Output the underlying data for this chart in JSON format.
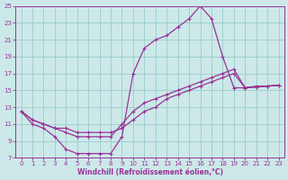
{
  "xlabel": "Windchill (Refroidissement éolien,°C)",
  "background_color": "#cce8e8",
  "grid_color": "#99cccc",
  "line_color": "#993399",
  "xlim": [
    -0.5,
    23.5
  ],
  "ylim": [
    7,
    25
  ],
  "xticks": [
    0,
    1,
    2,
    3,
    4,
    5,
    6,
    7,
    8,
    9,
    10,
    11,
    12,
    13,
    14,
    15,
    16,
    17,
    18,
    19,
    20,
    21,
    22,
    23
  ],
  "yticks": [
    7,
    9,
    11,
    13,
    15,
    17,
    19,
    21,
    23,
    25
  ],
  "line1_x": [
    0,
    1,
    2,
    3,
    4,
    5,
    6,
    7,
    8,
    9,
    10,
    11,
    12,
    13,
    14,
    15,
    16,
    17,
    18,
    19,
    20,
    21,
    22,
    23
  ],
  "line1_y": [
    12.5,
    11,
    10.5,
    9.5,
    8,
    7.5,
    7.5,
    7.5,
    7.5,
    9.5,
    17,
    20,
    21,
    21.5,
    22.5,
    23.5,
    25,
    23.5,
    19.0,
    15.3,
    15.3,
    15.5,
    15.5,
    15.6
  ],
  "line2_x": [
    0,
    1,
    2,
    3,
    4,
    5,
    6,
    7,
    8,
    9,
    10,
    11,
    12,
    13,
    14,
    15,
    16,
    17,
    18,
    19,
    20,
    21,
    22,
    23
  ],
  "line2_y": [
    12.5,
    11.5,
    11.0,
    10.5,
    10.0,
    9.5,
    9.5,
    9.5,
    9.5,
    11.0,
    12.5,
    13.5,
    14.0,
    14.5,
    15.0,
    15.5,
    16.0,
    16.5,
    17.0,
    17.5,
    15.3,
    15.4,
    15.5,
    15.6
  ],
  "line3_x": [
    0,
    1,
    2,
    3,
    4,
    5,
    6,
    7,
    8,
    9,
    10,
    11,
    12,
    13,
    14,
    15,
    16,
    17,
    18,
    19,
    20,
    21,
    22,
    23
  ],
  "line3_y": [
    12.5,
    11.5,
    11.0,
    10.5,
    10.5,
    10.0,
    10.0,
    10.0,
    10.0,
    10.5,
    11.5,
    12.5,
    13.0,
    14.0,
    14.5,
    15.0,
    15.5,
    16.0,
    16.5,
    17.0,
    15.3,
    15.4,
    15.5,
    15.6
  ]
}
